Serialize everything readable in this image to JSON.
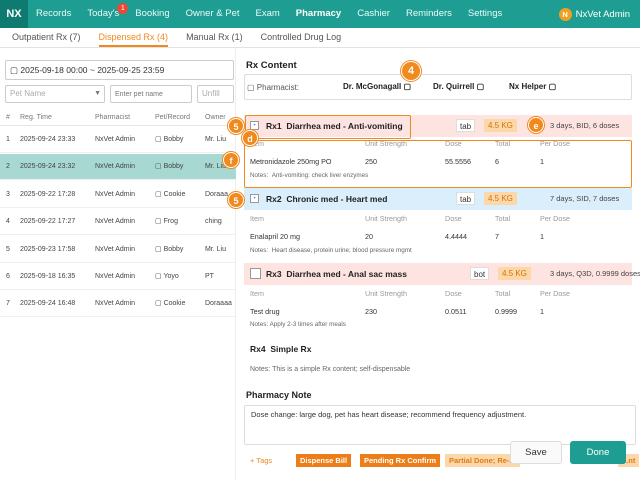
{
  "nav": {
    "logo": "NX",
    "items": [
      "Records",
      "Today's",
      "Booking",
      "Owner & Pet",
      "Exam",
      "Pharmacy",
      "Cashier",
      "Reminders",
      "Settings"
    ],
    "todays_badge": "1",
    "user_initial": "N",
    "user_name": "NxVet Admin"
  },
  "tabs": [
    "Outpatient Rx (7)",
    "Dispensed Rx (4)",
    "Manual Rx (1)",
    "Controlled Drug Log"
  ],
  "filters": {
    "date_range": "2025-09-18 00:00 ~ 2025-09-25 23:59",
    "pet_name_select": "Pet Name",
    "pet_name_placeholder": "Enter pet name",
    "status_select": "Unfill"
  },
  "list": {
    "headers": [
      "#",
      "Reg. Time",
      "Pharmacist",
      "Pet/Record",
      "Owner"
    ],
    "rows": [
      {
        "no": "1",
        "time": "2025-09-24 23:33",
        "pharmacist": "NxVet Admin",
        "pet": "Bobby",
        "owner": "Mr. Liu"
      },
      {
        "no": "2",
        "time": "2025-09-24 23:32",
        "pharmacist": "NxVet Admin",
        "pet": "Bobby",
        "owner": "Mr. Liu"
      },
      {
        "no": "3",
        "time": "2025-09-22 17:28",
        "pharmacist": "NxVet Admin",
        "pet": "Cookie",
        "owner": "Doraaa"
      },
      {
        "no": "4",
        "time": "2025-09-22 17:27",
        "pharmacist": "NxVet Admin",
        "pet": "Frog",
        "owner": "ching"
      },
      {
        "no": "5",
        "time": "2025-09-23 17:58",
        "pharmacist": "NxVet Admin",
        "pet": "Bobby",
        "owner": "Mr. Liu"
      },
      {
        "no": "6",
        "time": "2025-09-18 16:35",
        "pharmacist": "NxVet Admin",
        "pet": "Yoyo",
        "owner": "PT"
      },
      {
        "no": "7",
        "time": "2025-09-24 16:48",
        "pharmacist": "NxVet Admin",
        "pet": "Cookie",
        "owner": "Doraaaa"
      }
    ]
  },
  "rx": {
    "title": "Rx Content",
    "pharmacist_label": "Pharmacist:",
    "pharmacists": [
      "Dr. McGonagall",
      "Dr. Quirrell",
      "Nx Helper"
    ],
    "col_headers": [
      "Item",
      "Unit Strength",
      "Dose",
      "Total",
      "Per Dose"
    ],
    "notes_label": "Notes:",
    "prescriptions": [
      {
        "id": "Rx1",
        "name": "Diarrhea med - Anti-vomiting",
        "form": "tab",
        "weight": "4.5 KG",
        "summary": "3 days, BID, 6 doses",
        "item": "Metronidazole 250mg PO",
        "strength": "250",
        "dose": "55.5556",
        "total": "6",
        "per_dose": "1",
        "notes": "Anti-vomiting: check liver enzymes"
      },
      {
        "id": "Rx2",
        "name": "Chronic med - Heart med",
        "form": "tab",
        "weight": "4.5 KG",
        "summary": "7 days, SID, 7 doses",
        "item": "Enalapril 20 mg",
        "strength": "20",
        "dose": "4.4444",
        "total": "7",
        "per_dose": "1",
        "notes": "Heart disease, protein urine; blood pressure mgmt"
      },
      {
        "id": "Rx3",
        "name": "Diarrhea med - Anal sac mass",
        "form": "bot",
        "weight": "4.5 KG",
        "summary": "3 days, Q3D, 0.9999 doses",
        "item": "Test drug",
        "strength": "230",
        "dose": "0.0511",
        "total": "0.9999",
        "per_dose": "1",
        "notes": "Apply 2-3 times after meals"
      },
      {
        "id": "Rx4",
        "name": "Simple Rx",
        "notes": "This is a simple Rx content; self-dispensable"
      }
    ]
  },
  "steps": [
    "4",
    "5",
    "e",
    "d",
    "f",
    "5"
  ],
  "pharmacy_note": {
    "title": "Pharmacy Note",
    "text": "Dose change: large dog, pet has heart disease; recommend frequency adjustment."
  },
  "tags": {
    "add": "+ Tags",
    "buttons": [
      "Dispense Bill",
      "Pending Rx Confirm",
      "Partial Done; Re-...",
      "...nt"
    ]
  },
  "actions": {
    "save": "Save",
    "done": "Done"
  }
}
